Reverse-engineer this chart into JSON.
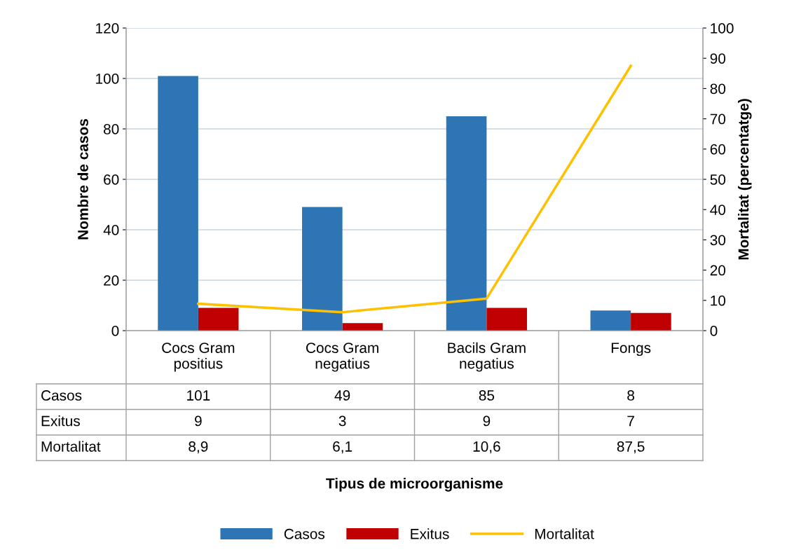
{
  "chart_data": {
    "type": "bar",
    "annotations": [
      "Tipus de microorganisme"
    ],
    "ylabel": "Nombre de casos",
    "y2label": "Mortalitat (percentatge)",
    "categories": [
      "Cocs Gram\npositius",
      "Cocs Gram\nnegatius",
      "Bacils Gram\nnegatius",
      "Fongs"
    ],
    "series": [
      {
        "name": "Casos",
        "color": "#2e75b6",
        "values": [
          101,
          49,
          85,
          8
        ],
        "value_labels": [
          "101",
          "49",
          "85",
          "8"
        ]
      },
      {
        "name": "Exitus",
        "color": "#c00000",
        "values": [
          9,
          3,
          9,
          7
        ],
        "value_labels": [
          "9",
          "3",
          "9",
          "7"
        ]
      },
      {
        "name": "Mortalitat",
        "type": "line",
        "axis": "y2",
        "color": "#ffc000",
        "values": [
          8.9,
          6.1,
          10.6,
          87.5
        ],
        "value_labels": [
          "8,9",
          "6,1",
          "10,6",
          "87,5"
        ]
      }
    ],
    "ylim": [
      0,
      120
    ],
    "yticks": [
      0,
      20,
      40,
      60,
      80,
      100,
      120
    ],
    "y2lim": [
      0,
      100
    ],
    "y2ticks": [
      0,
      10,
      20,
      30,
      40,
      50,
      60,
      70,
      80,
      90,
      100
    ],
    "grid": "y",
    "legend": "bottom"
  }
}
